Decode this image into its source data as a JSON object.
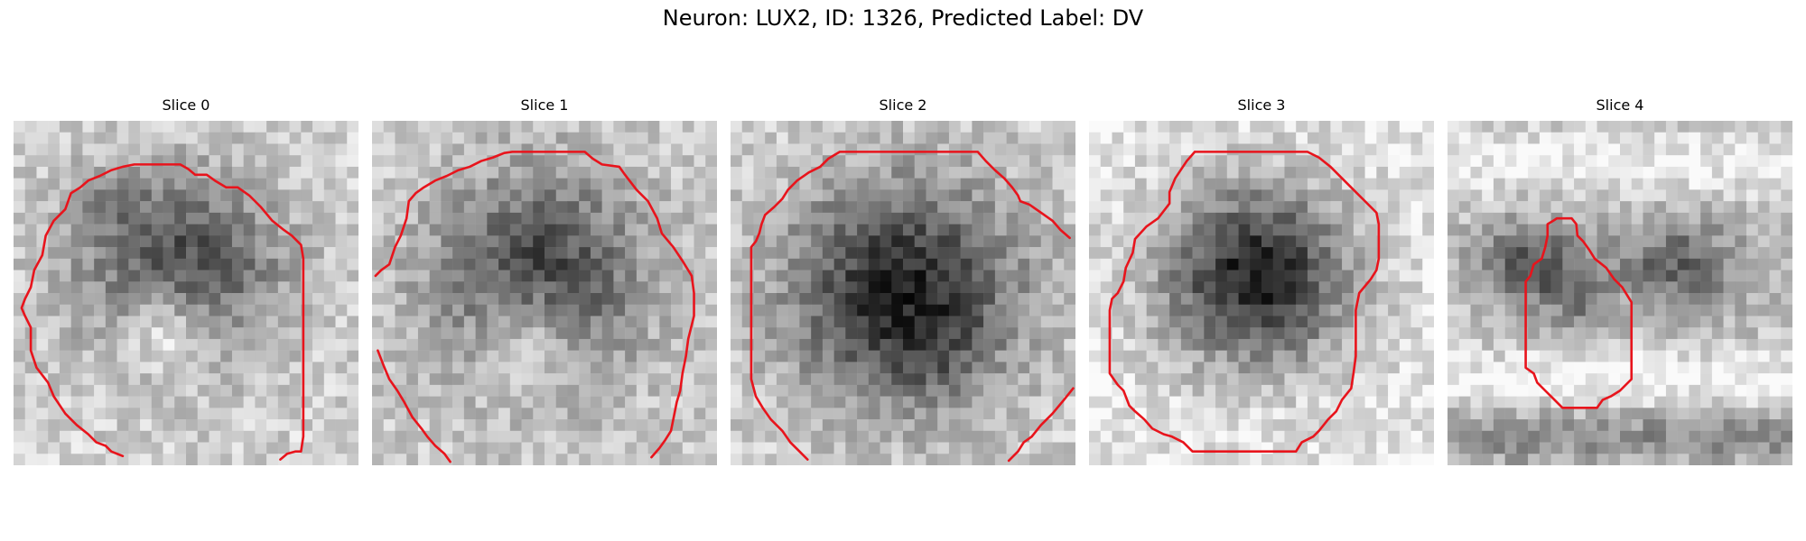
{
  "figure": {
    "title": "Neuron: LUX2, ID: 1326, Predicted Label: DV"
  },
  "panels": [
    {
      "title": "Slice 0"
    },
    {
      "title": "Slice 1"
    },
    {
      "title": "Slice 2"
    },
    {
      "title": "Slice 3"
    },
    {
      "title": "Slice 4"
    }
  ],
  "colors": {
    "contour": "#e8141c",
    "background": "#ffffff"
  }
}
